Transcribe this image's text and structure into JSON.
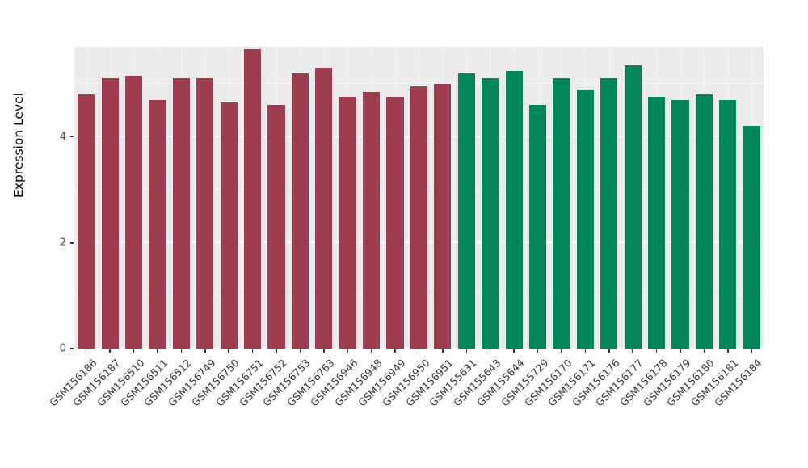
{
  "chart_data": {
    "type": "bar",
    "title": "",
    "xlabel": "",
    "ylabel": "Expression Level",
    "ylim": [
      0,
      5.7
    ],
    "yticks_major": [
      0,
      2,
      4
    ],
    "yticks_minor": [
      1,
      3,
      5
    ],
    "legend": "none",
    "panel_bg": "#ebebeb",
    "grid_color": "#ffffff",
    "groups": [
      {
        "name": "group-1",
        "color": "#9e3d50"
      },
      {
        "name": "group-2",
        "color": "#028558"
      }
    ],
    "categories": [
      "GSM156186",
      "GSM156187",
      "GSM156510",
      "GSM156511",
      "GSM156512",
      "GSM156749",
      "GSM156750",
      "GSM156751",
      "GSM156752",
      "GSM156753",
      "GSM156763",
      "GSM156946",
      "GSM156948",
      "GSM156949",
      "GSM156950",
      "GSM156951",
      "GSM155631",
      "GSM155643",
      "GSM155644",
      "GSM155729",
      "GSM156170",
      "GSM156171",
      "GSM156176",
      "GSM156177",
      "GSM156178",
      "GSM156179",
      "GSM156180",
      "GSM156181",
      "GSM156184"
    ],
    "values": [
      4.8,
      5.1,
      5.15,
      4.7,
      5.1,
      5.1,
      4.65,
      5.65,
      4.6,
      5.2,
      5.3,
      4.75,
      4.85,
      4.75,
      4.95,
      5.0,
      5.2,
      5.1,
      5.25,
      4.6,
      5.1,
      4.9,
      5.1,
      5.35,
      4.75,
      4.7,
      4.8,
      4.7,
      4.2
    ],
    "bar_groups": [
      0,
      0,
      0,
      0,
      0,
      0,
      0,
      0,
      0,
      0,
      0,
      0,
      0,
      0,
      0,
      0,
      1,
      1,
      1,
      1,
      1,
      1,
      1,
      1,
      1,
      1,
      1,
      1,
      1
    ]
  }
}
